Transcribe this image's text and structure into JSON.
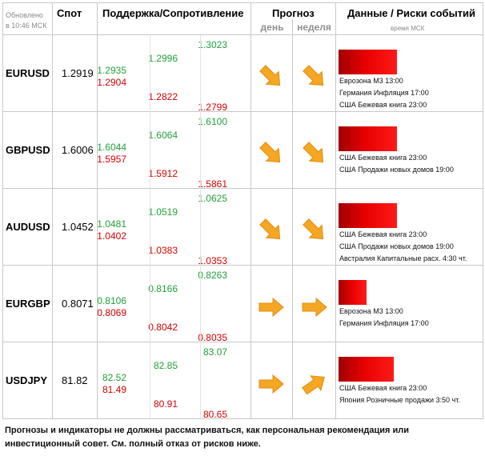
{
  "header": {
    "updated": "Обновлено",
    "updated_time": "в 10:46 МСК",
    "spot": "Спот",
    "sr": "Поддержка/Сопротивление",
    "forecast": "Прогноз",
    "day": "день",
    "week": "неделя",
    "risk": "Данные / Риски событий",
    "risk_sub": "время МСК"
  },
  "rows": [
    {
      "pair": "EURUSD",
      "spot": "1.2919",
      "s1": "1.2935",
      "r1": "1.2904",
      "s2": "1.2996",
      "r2": "1.2822",
      "s3": "1.3023",
      "r3": "1.2799",
      "day": "down-right",
      "week": "down-right",
      "risk_level": 0.95,
      "events": [
        "Еврозона M3 13:00",
        "Германия Инфляция 17:00",
        "США Бежевая книга 23:00"
      ]
    },
    {
      "pair": "GBPUSD",
      "spot": "1.6006",
      "s1": "1.6044",
      "r1": "1.5957",
      "s2": "1.6064",
      "r2": "1.5912",
      "s3": "1.6100",
      "r3": "1.5861",
      "day": "down-right",
      "week": "down-right",
      "risk_level": 0.95,
      "events": [
        "США Бежевая книга 23:00",
        "США Продажи новых домов 19:00"
      ]
    },
    {
      "pair": "AUDUSD",
      "spot": "1.0452",
      "s1": "1.0481",
      "r1": "1.0402",
      "s2": "1.0519",
      "r2": "1.0383",
      "s3": "1.0625",
      "r3": "1.0353",
      "day": "down-right",
      "week": "down-right",
      "risk_level": 0.95,
      "events": [
        "США Бежевая книга 23:00",
        "США Продажи новых домов 19:00",
        "Австралия Капитальные расх. 4:30 чт."
      ]
    },
    {
      "pair": "EURGBP",
      "spot": "0.8071",
      "s1": "0.8106",
      "r1": "0.8069",
      "s2": "0.8166",
      "r2": "0.8042",
      "s3": "0.8263",
      "r3": "0.8035",
      "day": "right",
      "week": "right",
      "risk_level": 0.45,
      "events": [
        "Еврозона M3 13:00",
        "Германия Инфляция 17:00"
      ]
    },
    {
      "pair": "USDJPY",
      "spot": "81.82",
      "s1": "82.52",
      "r1": "81.49",
      "s2": "82.85",
      "r2": "80.91",
      "s3": "83.07",
      "r3": "80.65",
      "day": "right",
      "week": "up-right",
      "risk_level": 0.9,
      "events": [
        "США Бежевая книга 23:00",
        "Япония Розничные продажи 3:50 чт."
      ]
    }
  ],
  "colors": {
    "support": "#22a03a",
    "resistance": "#d40000",
    "arrow": "#f5a623",
    "risk": "#e60000"
  },
  "footer": "Прогнозы и индикаторы не должны рассматриваться, как персональная рекомендация или инвестиционный совет. См. полный отказ от рисков ниже."
}
